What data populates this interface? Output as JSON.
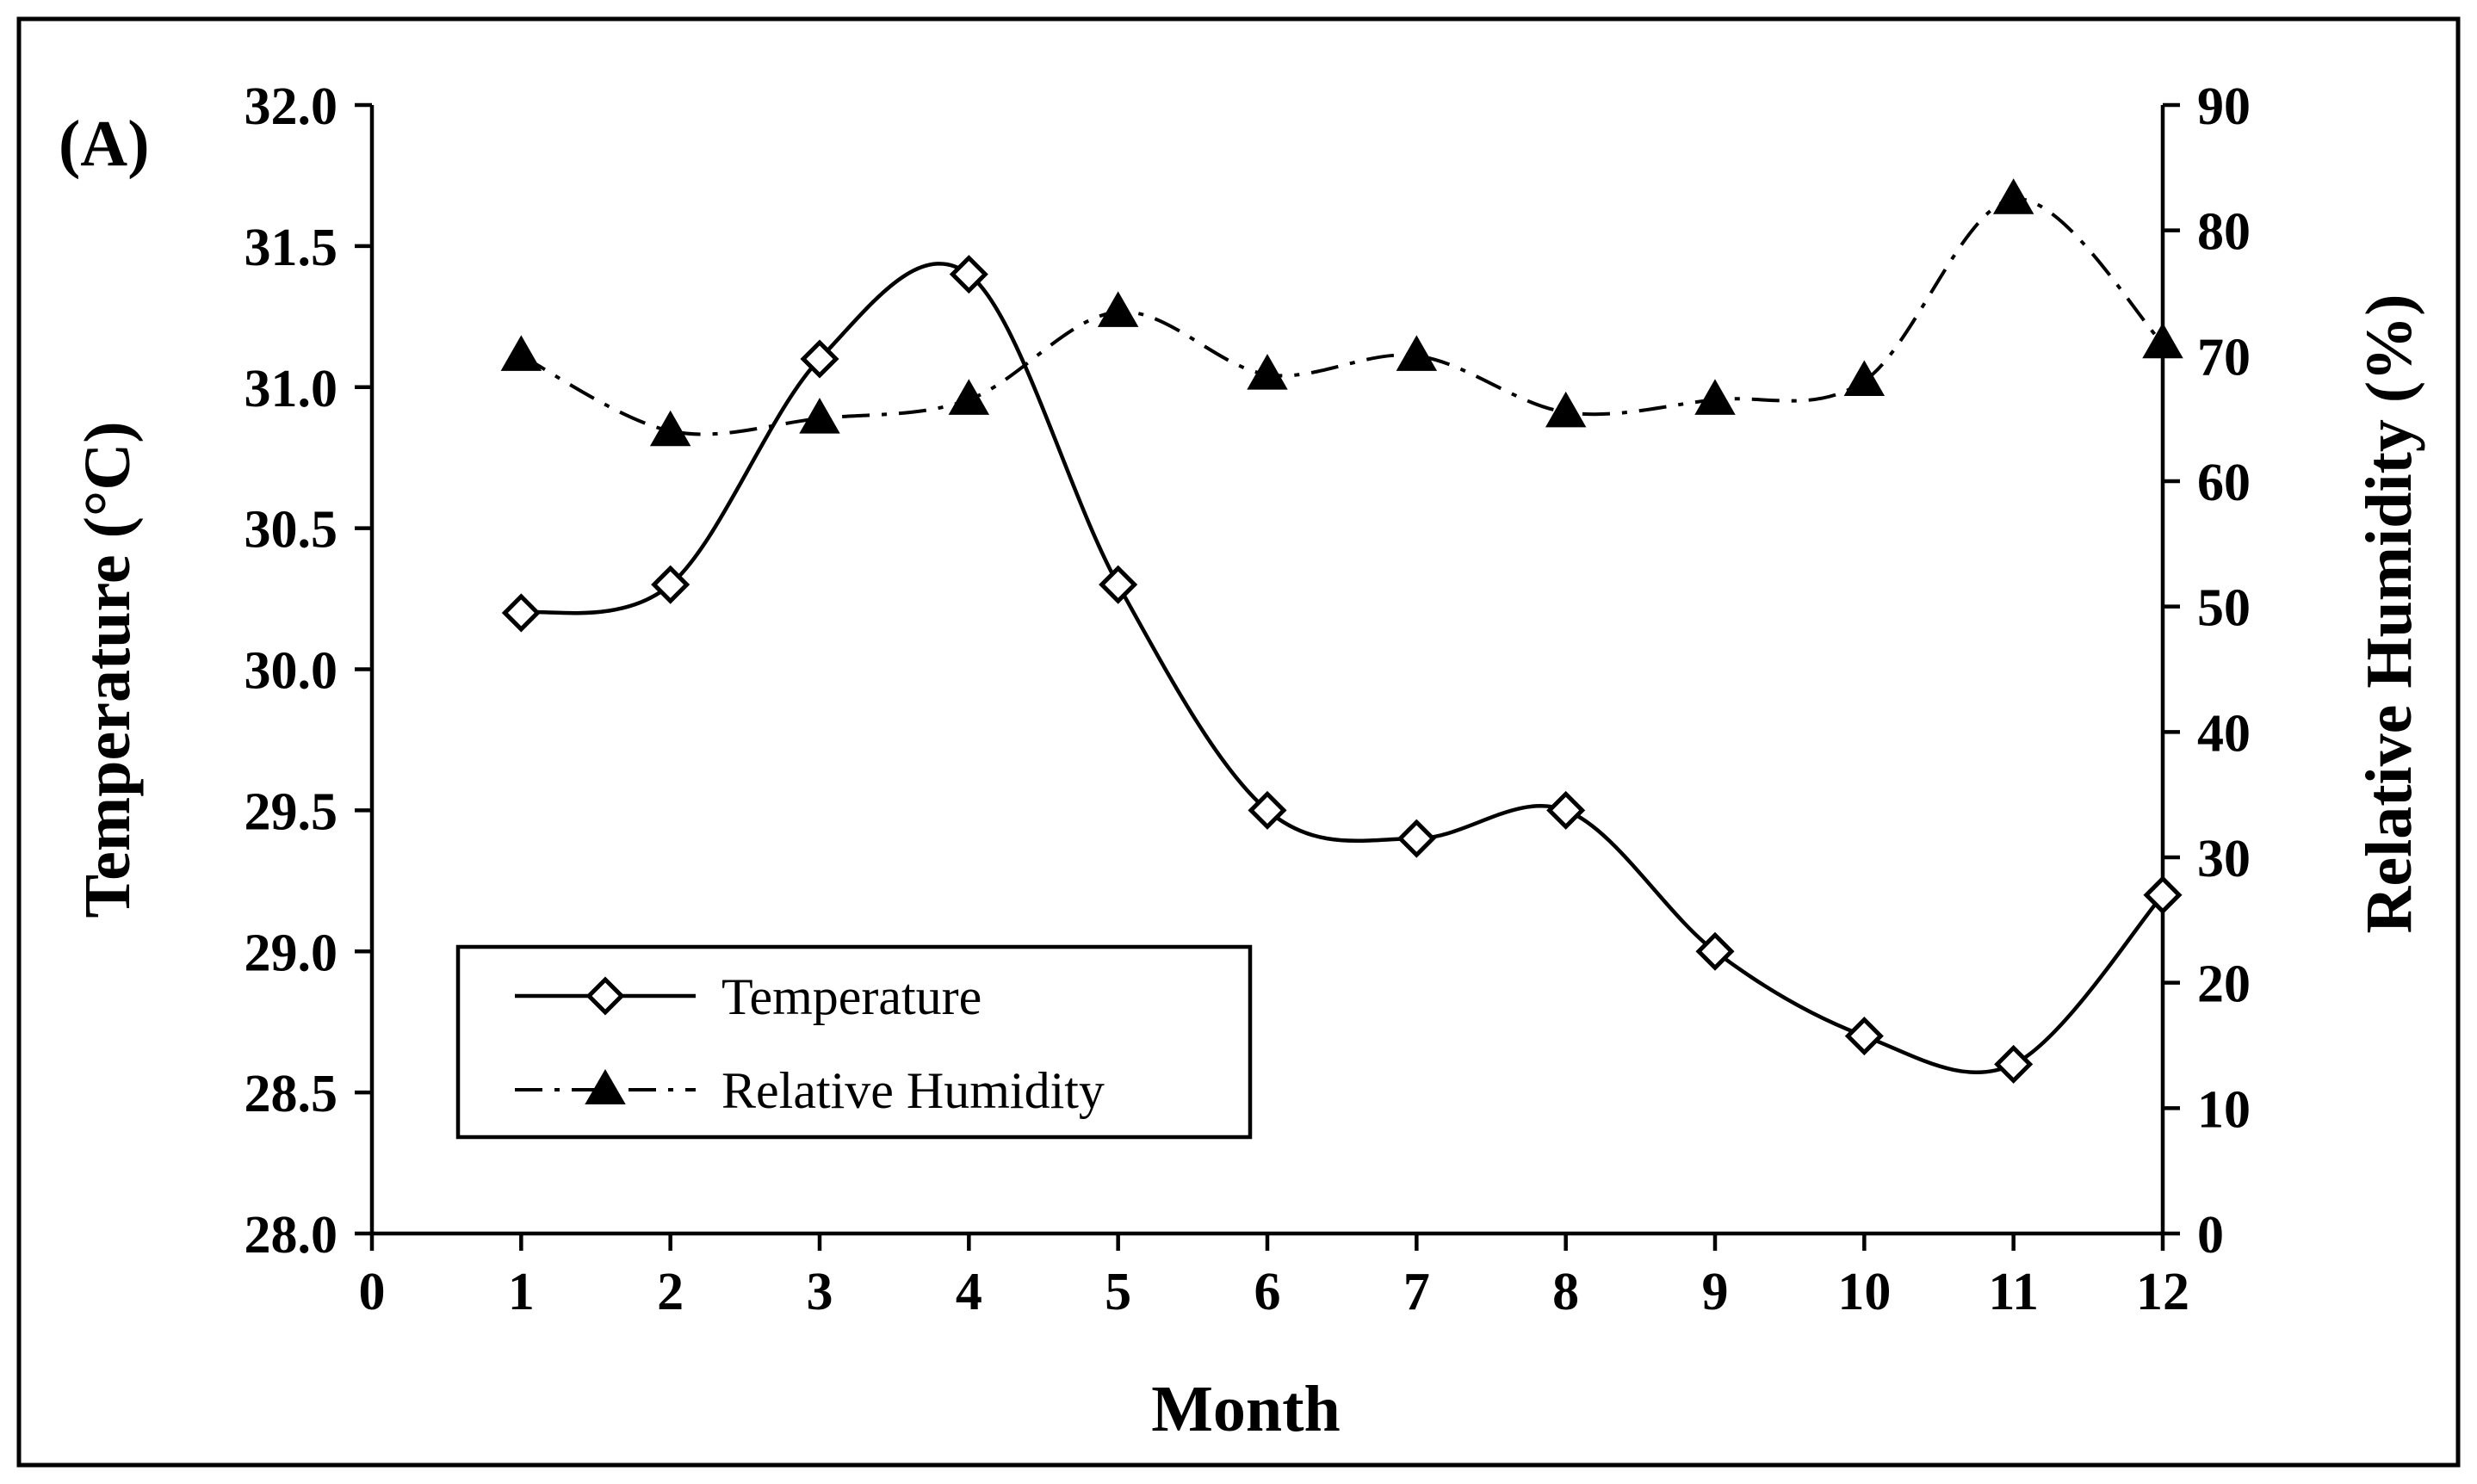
{
  "chart_data": {
    "type": "line",
    "panel_label": "(A)",
    "xlabel": "Month",
    "ylabel": "Temperature (°C)",
    "y2label": "Relative Humidity (%)",
    "x_ticks": [
      "0",
      "1",
      "2",
      "3",
      "4",
      "5",
      "6",
      "7",
      "8",
      "9",
      "10",
      "11",
      "12"
    ],
    "y_ticks": [
      "28.0",
      "28.5",
      "29.0",
      "29.5",
      "30.0",
      "30.5",
      "31.0",
      "31.5",
      "32.0"
    ],
    "y2_ticks": [
      "0",
      "10",
      "20",
      "30",
      "40",
      "50",
      "60",
      "70",
      "80",
      "90"
    ],
    "xlim": [
      0,
      12
    ],
    "ylim": [
      28.0,
      32.0
    ],
    "y2lim": [
      0,
      90
    ],
    "x": [
      1,
      2,
      3,
      4,
      5,
      6,
      7,
      8,
      9,
      10,
      11,
      12
    ],
    "series": [
      {
        "name": "Temperature",
        "axis": "left",
        "marker": "open-diamond",
        "line": "solid-smooth",
        "values": [
          30.2,
          30.3,
          31.1,
          31.4,
          30.3,
          29.5,
          29.4,
          29.5,
          29.0,
          28.7,
          28.6,
          29.2
        ]
      },
      {
        "name": "Relative Humidity",
        "axis": "right",
        "marker": "filled-triangle",
        "line": "dash-dot-smooth",
        "values": [
          70,
          64,
          65,
          66.5,
          73.5,
          68.5,
          70,
          65.5,
          66.5,
          68,
          82.5,
          71
        ]
      }
    ],
    "legend": {
      "position": "lower-left",
      "entries": [
        "Temperature",
        "Relative Humidity"
      ]
    },
    "grid": false
  }
}
